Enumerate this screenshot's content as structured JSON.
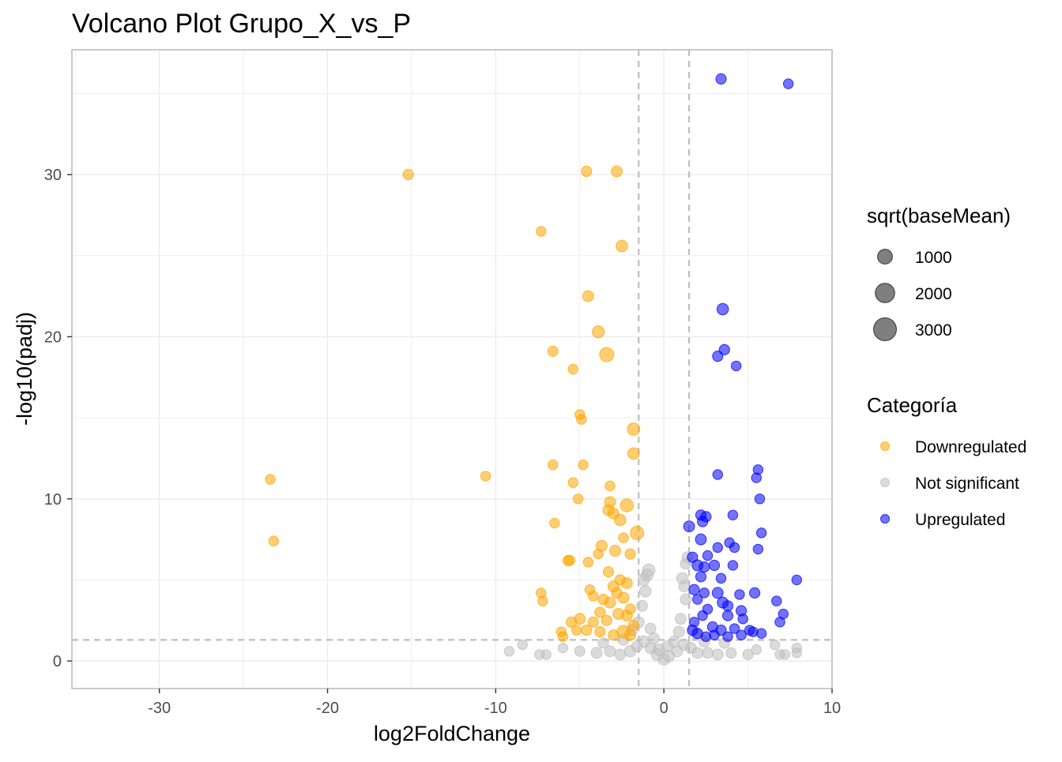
{
  "chart_data": {
    "type": "scatter",
    "title": "Volcano Plot Grupo_X_vs_P",
    "xlabel": "log2FoldChange",
    "ylabel": "-log10(padj)",
    "xlim": [
      -35.2,
      10
    ],
    "ylim": [
      -1.7,
      37.7
    ],
    "x_ticks": [
      -30,
      -20,
      -10,
      0,
      10
    ],
    "y_ticks": [
      0,
      10,
      20,
      30
    ],
    "x_tick_labels": [
      "-30",
      "-20",
      "-10",
      "0",
      "10"
    ],
    "y_tick_labels": [
      "0",
      "10",
      "20",
      "30"
    ],
    "grid": true,
    "thresholds": {
      "log2fc": [
        -1.5,
        1.5
      ],
      "neg_log10_padj": 1.3
    },
    "legend_position": "right",
    "size_legend": {
      "title": "sqrt(baseMean)",
      "entries": [
        {
          "label": "1000",
          "value": 1000
        },
        {
          "label": "2000",
          "value": 2000
        },
        {
          "label": "3000",
          "value": 3000
        }
      ]
    },
    "color_legend": {
      "title": "Categoría",
      "entries": [
        {
          "label": "Downregulated",
          "color": "#FFA500"
        },
        {
          "label": "Not significant",
          "color": "#BEBEBE"
        },
        {
          "label": "Upregulated",
          "color": "#0000FF"
        }
      ]
    },
    "series": [
      {
        "name": "Downregulated",
        "color": "#FFA500",
        "points": [
          [
            -15.2,
            30.0,
            900
          ],
          [
            -4.6,
            30.2,
            900
          ],
          [
            -2.8,
            30.2,
            1000
          ],
          [
            -7.3,
            26.5,
            800
          ],
          [
            -2.5,
            25.6,
            1100
          ],
          [
            -4.5,
            22.5,
            1000
          ],
          [
            -3.9,
            20.3,
            1200
          ],
          [
            -6.6,
            19.1,
            900
          ],
          [
            -3.4,
            18.9,
            1700
          ],
          [
            -5.4,
            18.0,
            800
          ],
          [
            -23.4,
            11.2,
            800
          ],
          [
            -23.2,
            7.4,
            800
          ],
          [
            -10.6,
            11.4,
            800
          ],
          [
            -5.0,
            15.2,
            800
          ],
          [
            -4.9,
            14.9,
            800
          ],
          [
            -1.8,
            14.3,
            1300
          ],
          [
            -1.8,
            12.8,
            1100
          ],
          [
            -6.6,
            12.1,
            800
          ],
          [
            -4.8,
            12.1,
            800
          ],
          [
            -5.4,
            11.0,
            800
          ],
          [
            -3.2,
            10.8,
            800
          ],
          [
            -5.1,
            10.0,
            800
          ],
          [
            -3.2,
            9.8,
            1000
          ],
          [
            -2.2,
            9.6,
            1400
          ],
          [
            -3.3,
            9.3,
            1000
          ],
          [
            -3.0,
            9.1,
            1000
          ],
          [
            -2.6,
            8.7,
            1100
          ],
          [
            -6.5,
            8.5,
            800
          ],
          [
            -1.6,
            7.9,
            1500
          ],
          [
            -2.4,
            7.6,
            800
          ],
          [
            -3.7,
            7.1,
            1000
          ],
          [
            -2.9,
            6.8,
            1000
          ],
          [
            -3.9,
            6.6,
            800
          ],
          [
            -2.0,
            6.6,
            900
          ],
          [
            -5.7,
            6.2,
            900
          ],
          [
            -5.6,
            6.2,
            900
          ],
          [
            -4.5,
            6.1,
            800
          ],
          [
            -3.3,
            5.5,
            900
          ],
          [
            -2.6,
            5.0,
            900
          ],
          [
            -2.2,
            4.8,
            1000
          ],
          [
            -3.0,
            4.6,
            1000
          ],
          [
            -2.8,
            4.2,
            900
          ],
          [
            -4.4,
            4.4,
            800
          ],
          [
            -4.2,
            4.0,
            800
          ],
          [
            -3.6,
            3.8,
            900
          ],
          [
            -3.2,
            3.6,
            1000
          ],
          [
            -2.4,
            3.9,
            1000
          ],
          [
            -7.3,
            4.2,
            800
          ],
          [
            -7.2,
            3.7,
            800
          ],
          [
            -2.0,
            3.2,
            900
          ],
          [
            -3.8,
            3.0,
            900
          ],
          [
            -2.7,
            2.9,
            1000
          ],
          [
            -5.5,
            2.4,
            900
          ],
          [
            -5.0,
            2.6,
            1000
          ],
          [
            -4.2,
            2.4,
            900
          ],
          [
            -3.4,
            2.5,
            900
          ],
          [
            -2.2,
            2.8,
            1000
          ],
          [
            -1.8,
            2.2,
            900
          ],
          [
            -6.1,
            1.8,
            800
          ],
          [
            -6.0,
            1.5,
            800
          ],
          [
            -4.6,
            1.9,
            900
          ],
          [
            -3.8,
            1.8,
            900
          ],
          [
            -2.4,
            1.8,
            1400
          ],
          [
            -2.0,
            1.6,
            1000
          ],
          [
            -5.2,
            1.9,
            800
          ],
          [
            -3.0,
            1.6,
            900
          ]
        ]
      },
      {
        "name": "Not significant",
        "color": "#BEBEBE",
        "points": [
          [
            0.0,
            0.1,
            1100
          ],
          [
            -0.4,
            0.4,
            1200
          ],
          [
            0.3,
            0.3,
            1100
          ],
          [
            -0.8,
            0.8,
            1000
          ],
          [
            0.8,
            0.6,
            1000
          ],
          [
            -1.2,
            1.2,
            1100
          ],
          [
            1.2,
            1.0,
            1000
          ],
          [
            -1.6,
            0.9,
            1000
          ],
          [
            1.6,
            0.8,
            1000
          ],
          [
            -2.0,
            0.6,
            1100
          ],
          [
            2.0,
            0.5,
            1000
          ],
          [
            -2.6,
            0.4,
            1000
          ],
          [
            2.6,
            0.5,
            1000
          ],
          [
            -3.2,
            0.6,
            1000
          ],
          [
            3.2,
            0.4,
            1000
          ],
          [
            -4.0,
            0.5,
            1000
          ],
          [
            4.0,
            0.5,
            900
          ],
          [
            -5.0,
            0.6,
            900
          ],
          [
            5.0,
            0.4,
            900
          ],
          [
            -6.0,
            0.8,
            800
          ],
          [
            -7.0,
            0.4,
            800
          ],
          [
            -7.4,
            0.4,
            800
          ],
          [
            -8.4,
            1.0,
            800
          ],
          [
            -9.2,
            0.6,
            800
          ],
          [
            6.6,
            1.0,
            800
          ],
          [
            6.9,
            0.4,
            800
          ],
          [
            7.2,
            0.4,
            800
          ],
          [
            7.9,
            0.5,
            800
          ],
          [
            7.9,
            0.8,
            800
          ],
          [
            5.5,
            0.7,
            800
          ],
          [
            -1.5,
            2.4,
            1000
          ],
          [
            -1.3,
            3.4,
            1000
          ],
          [
            -1.1,
            4.3,
            1100
          ],
          [
            -1.0,
            5.3,
            1200
          ],
          [
            -0.9,
            5.6,
            1300
          ],
          [
            -1.2,
            5.0,
            1100
          ],
          [
            -0.8,
            2.0,
            1000
          ],
          [
            -0.6,
            1.4,
            1000
          ],
          [
            1.2,
            4.6,
            1000
          ],
          [
            1.1,
            5.1,
            1100
          ],
          [
            1.3,
            3.8,
            1000
          ],
          [
            1.0,
            2.6,
            1000
          ],
          [
            0.9,
            1.8,
            1000
          ],
          [
            0.6,
            1.2,
            1000
          ],
          [
            1.4,
            6.4,
            1000
          ],
          [
            1.3,
            6.0,
            1000
          ],
          [
            -0.3,
            0.7,
            1100
          ],
          [
            0.2,
            0.9,
            1000
          ],
          [
            -2.4,
            1.3,
            1000
          ],
          [
            2.4,
            1.2,
            1000
          ],
          [
            -3.6,
            1.1,
            900
          ],
          [
            3.6,
            1.1,
            900
          ],
          [
            -1.9,
            1.9,
            1000
          ],
          [
            1.9,
            1.7,
            1000
          ]
        ]
      },
      {
        "name": "Upregulated",
        "color": "#0000FF",
        "points": [
          [
            3.4,
            35.9,
            900
          ],
          [
            7.4,
            35.6,
            800
          ],
          [
            3.5,
            21.7,
            1100
          ],
          [
            3.6,
            19.2,
            900
          ],
          [
            3.2,
            18.8,
            900
          ],
          [
            4.3,
            18.2,
            800
          ],
          [
            5.6,
            11.8,
            800
          ],
          [
            3.2,
            11.5,
            800
          ],
          [
            5.5,
            11.3,
            800
          ],
          [
            5.7,
            10.0,
            800
          ],
          [
            2.2,
            9.0,
            900
          ],
          [
            2.5,
            8.9,
            900
          ],
          [
            4.1,
            9.0,
            800
          ],
          [
            2.3,
            8.6,
            900
          ],
          [
            1.5,
            8.3,
            1000
          ],
          [
            5.8,
            7.9,
            800
          ],
          [
            2.2,
            7.5,
            1000
          ],
          [
            3.9,
            7.3,
            800
          ],
          [
            3.2,
            7.0,
            800
          ],
          [
            4.2,
            7.0,
            800
          ],
          [
            5.6,
            6.9,
            800
          ],
          [
            2.6,
            6.5,
            800
          ],
          [
            1.7,
            6.4,
            900
          ],
          [
            2.0,
            5.9,
            1000
          ],
          [
            3.0,
            5.9,
            900
          ],
          [
            2.4,
            5.8,
            900
          ],
          [
            4.1,
            5.9,
            800
          ],
          [
            2.2,
            5.2,
            900
          ],
          [
            3.4,
            5.1,
            800
          ],
          [
            1.8,
            4.4,
            900
          ],
          [
            2.4,
            4.2,
            800
          ],
          [
            3.2,
            4.2,
            1000
          ],
          [
            4.5,
            4.1,
            800
          ],
          [
            5.4,
            4.2,
            900
          ],
          [
            7.9,
            5.0,
            800
          ],
          [
            2.0,
            3.8,
            800
          ],
          [
            3.5,
            3.6,
            1000
          ],
          [
            3.8,
            3.4,
            900
          ],
          [
            6.7,
            3.7,
            800
          ],
          [
            2.6,
            3.2,
            800
          ],
          [
            4.6,
            3.1,
            900
          ],
          [
            7.1,
            2.9,
            800
          ],
          [
            2.3,
            2.8,
            800
          ],
          [
            3.8,
            2.8,
            900
          ],
          [
            4.7,
            2.6,
            800
          ],
          [
            6.9,
            2.4,
            800
          ],
          [
            1.8,
            2.4,
            800
          ],
          [
            2.9,
            2.1,
            900
          ],
          [
            4.2,
            2.0,
            800
          ],
          [
            3.4,
            1.9,
            900
          ],
          [
            5.1,
            1.9,
            800
          ],
          [
            2.0,
            1.7,
            900
          ],
          [
            3.0,
            1.6,
            800
          ],
          [
            4.6,
            1.6,
            800
          ],
          [
            5.3,
            1.8,
            800
          ],
          [
            5.8,
            1.7,
            800
          ],
          [
            2.5,
            1.5,
            800
          ],
          [
            3.8,
            1.5,
            800
          ],
          [
            1.7,
            1.9,
            900
          ]
        ]
      }
    ]
  }
}
